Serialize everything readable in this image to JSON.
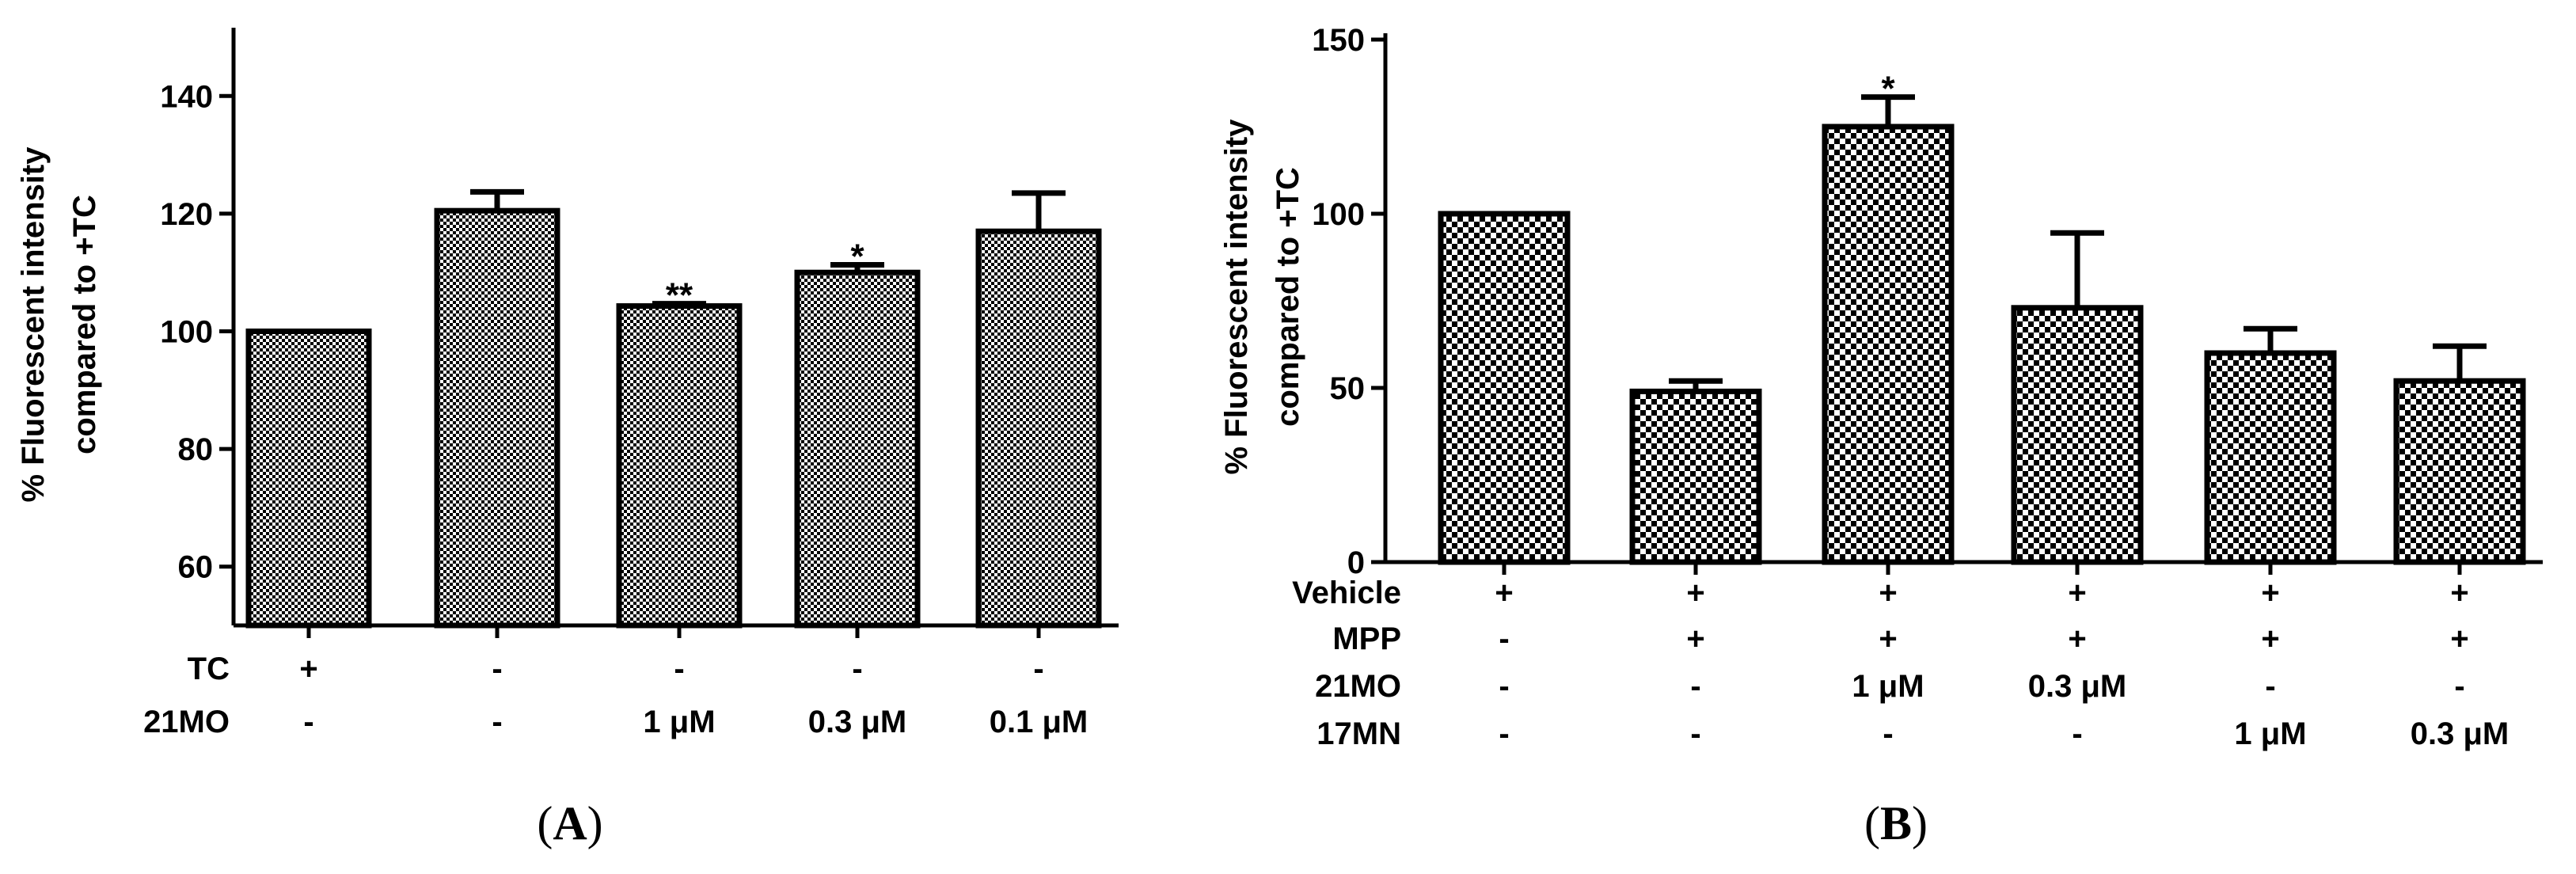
{
  "chart_data": [
    {
      "panel": "A",
      "type": "bar",
      "ylabel": [
        "% Fluorescent intensity",
        "compared to +TC"
      ],
      "ylim": [
        50,
        150
      ],
      "yticks": [
        60,
        80,
        100,
        120,
        140
      ],
      "values": [
        100,
        120.5,
        104.3,
        110,
        117
      ],
      "errors": [
        0,
        3.2,
        0.4,
        1.3,
        6.5
      ],
      "significance": [
        "",
        "",
        "**",
        "*",
        ""
      ],
      "treatment_rows": [
        {
          "label": "TC",
          "values": [
            "+",
            "-",
            "-",
            "-",
            "-"
          ]
        },
        {
          "label": "21MO",
          "values": [
            "-",
            "-",
            "1 μM",
            "0.3 μM",
            "0.1 μM"
          ]
        }
      ]
    },
    {
      "panel": "B",
      "type": "bar",
      "ylabel": [
        "% Fluorescent intensity",
        "compared to +TC"
      ],
      "ylim": [
        0,
        150
      ],
      "yticks": [
        0,
        50,
        100,
        150
      ],
      "values": [
        100,
        49,
        125,
        73,
        60,
        52
      ],
      "errors": [
        0,
        3,
        8.5,
        21.5,
        7,
        10
      ],
      "significance": [
        "",
        "",
        "*",
        "",
        "",
        ""
      ],
      "treatment_rows": [
        {
          "label": "Vehicle",
          "values": [
            "+",
            "+",
            "+",
            "+",
            "+",
            "+"
          ]
        },
        {
          "label": "MPP",
          "values": [
            "-",
            "+",
            "+",
            "+",
            "+",
            "+"
          ]
        },
        {
          "label": "21MO",
          "values": [
            "-",
            "-",
            "1 μM",
            "0.3 μM",
            "-",
            "-"
          ]
        },
        {
          "label": "17MN",
          "values": [
            "-",
            "-",
            "-",
            "-",
            "1 μM",
            "0.3 μM"
          ]
        }
      ]
    }
  ],
  "panel_labels": [
    {
      "open": "(",
      "letter": "A",
      "close": ")"
    },
    {
      "open": "(",
      "letter": "B",
      "close": ")"
    }
  ]
}
